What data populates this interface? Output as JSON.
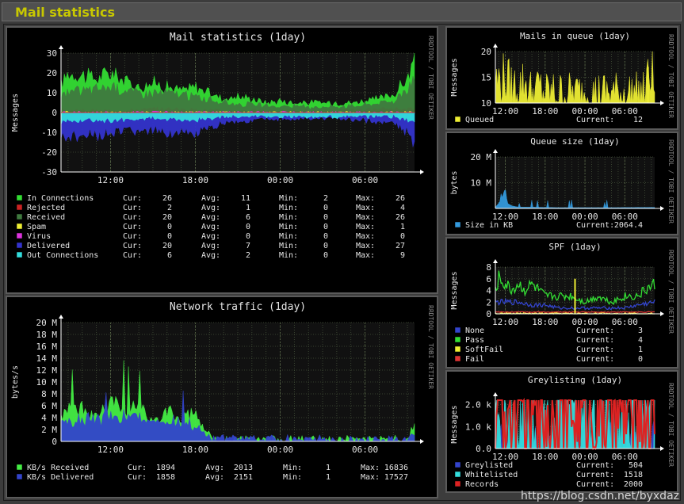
{
  "page": {
    "title": "Mail statistics"
  },
  "watermark": "https://blog.csdn.net/byxdaz",
  "colors": {
    "grid": "#44523a",
    "text": "#e6e6e6",
    "axis": "#ffffff",
    "frame": "#111111"
  },
  "chart_data": [
    {
      "id": "mail",
      "type": "area",
      "title": "Mail statistics  (1day)",
      "ylabel": "Messages",
      "side_label": "RRDTOOL / TOBI OETIKER",
      "ylim": [
        -30,
        30
      ],
      "yticks": [
        30,
        20,
        10,
        0,
        -10,
        -20,
        -30
      ],
      "xticks": [
        "12:00",
        "18:00",
        "00:00",
        "06:00"
      ],
      "x_range": [
        8.5,
        33.5
      ],
      "x_tick_hours": [
        12,
        18,
        24,
        30
      ],
      "series": [
        {
          "name": "In Connections",
          "color": "#33dd33",
          "stats": {
            "cur": 26,
            "avg": 11,
            "min": 2,
            "max": 26
          },
          "profile": [
            [
              8.5,
              14
            ],
            [
              9,
              20
            ],
            [
              10,
              19
            ],
            [
              11,
              17
            ],
            [
              12,
              20
            ],
            [
              13,
              16
            ],
            [
              14,
              13
            ],
            [
              15,
              15
            ],
            [
              16,
              13
            ],
            [
              17,
              11
            ],
            [
              18,
              13
            ],
            [
              19,
              10
            ],
            [
              20,
              7
            ],
            [
              21,
              8
            ],
            [
              22,
              7
            ],
            [
              23,
              5
            ],
            [
              24,
              6
            ],
            [
              25,
              5
            ],
            [
              26,
              5
            ],
            [
              27,
              5
            ],
            [
              28,
              5
            ],
            [
              29,
              5
            ],
            [
              30,
              6
            ],
            [
              31,
              7
            ],
            [
              32,
              9
            ],
            [
              33,
              17
            ],
            [
              33.5,
              26
            ]
          ]
        },
        {
          "name": "Rejected",
          "color": "#cc2222",
          "stats": {
            "cur": 2,
            "avg": 1,
            "min": 0,
            "max": 4
          },
          "profile": [
            [
              8.5,
              1
            ],
            [
              12,
              1
            ],
            [
              16,
              2
            ],
            [
              20,
              1
            ],
            [
              24,
              1
            ],
            [
              28,
              1
            ],
            [
              33.5,
              2
            ]
          ]
        },
        {
          "name": "Received",
          "color": "#3f7a3f",
          "stats": {
            "cur": 20,
            "avg": 6,
            "min": 0,
            "max": 26
          },
          "profile": [
            [
              8.5,
              9
            ],
            [
              10,
              11
            ],
            [
              12,
              13
            ],
            [
              14,
              10
            ],
            [
              16,
              10
            ],
            [
              18,
              8
            ],
            [
              20,
              5
            ],
            [
              22,
              4
            ],
            [
              24,
              3
            ],
            [
              26,
              3
            ],
            [
              28,
              3
            ],
            [
              30,
              4
            ],
            [
              32,
              6
            ],
            [
              33,
              12
            ],
            [
              33.5,
              20
            ]
          ]
        },
        {
          "name": "Spam",
          "color": "#eeee33",
          "stats": {
            "cur": 0,
            "avg": 0,
            "min": 0,
            "max": 1
          },
          "profile": [
            [
              8.5,
              0
            ],
            [
              33.5,
              0
            ]
          ]
        },
        {
          "name": "Virus",
          "color": "#dd33dd",
          "stats": {
            "cur": 0,
            "avg": 0,
            "min": 0,
            "max": 0
          },
          "profile": [
            [
              8.5,
              0
            ],
            [
              33.5,
              0
            ]
          ]
        },
        {
          "name": "Delivered",
          "color": "#3333cc",
          "stats": {
            "cur": 20,
            "avg": 7,
            "min": 0,
            "max": 27
          },
          "profile": [
            [
              8.5,
              -13
            ],
            [
              10,
              -12
            ],
            [
              12,
              -11
            ],
            [
              14,
              -9
            ],
            [
              16,
              -10
            ],
            [
              18,
              -11
            ],
            [
              19,
              -8
            ],
            [
              20,
              -5
            ],
            [
              22,
              -4
            ],
            [
              24,
              -3
            ],
            [
              26,
              -3
            ],
            [
              28,
              -3
            ],
            [
              30,
              -4
            ],
            [
              32,
              -5
            ],
            [
              33,
              -10
            ],
            [
              33.5,
              -16
            ]
          ]
        },
        {
          "name": "Out Connections",
          "color": "#33dddd",
          "stats": {
            "cur": 6,
            "avg": 2,
            "min": 0,
            "max": 9
          },
          "profile": [
            [
              8.5,
              -5
            ],
            [
              10,
              -4
            ],
            [
              12,
              -4
            ],
            [
              14,
              -3
            ],
            [
              16,
              -3
            ],
            [
              18,
              -4
            ],
            [
              20,
              -2
            ],
            [
              22,
              -2
            ],
            [
              24,
              -2
            ],
            [
              26,
              -2
            ],
            [
              28,
              -2
            ],
            [
              30,
              -2
            ],
            [
              32,
              -2
            ],
            [
              33.5,
              -5
            ]
          ]
        }
      ]
    },
    {
      "id": "traffic",
      "type": "area",
      "title": "Network traffic  (1day)",
      "ylabel": "bytes/s",
      "side_label": "RRDTOOL / TOBI OETIKER",
      "ylim": [
        0,
        20
      ],
      "yticks": [
        "20 M",
        "18 M",
        "16 M",
        "14 M",
        "12 M",
        "10 M",
        "8 M",
        "6 M",
        "4 M",
        "2 M",
        "0"
      ],
      "ytick_values": [
        20,
        18,
        16,
        14,
        12,
        10,
        8,
        6,
        4,
        2,
        0
      ],
      "xticks": [
        "12:00",
        "18:00",
        "00:00",
        "06:00"
      ],
      "x_range": [
        8.5,
        33.5
      ],
      "x_tick_hours": [
        12,
        18,
        24,
        30
      ],
      "series": [
        {
          "name": "KB/s Received",
          "color": "#44ee44",
          "stats": {
            "cur": 1894,
            "avg": 2013,
            "min": 1,
            "max": 16836
          },
          "profile": [
            [
              8.5,
              5
            ],
            [
              10,
              6
            ],
            [
              11,
              4
            ],
            [
              12,
              7
            ],
            [
              13,
              5
            ],
            [
              14,
              6
            ],
            [
              15,
              3
            ],
            [
              16,
              5
            ],
            [
              17,
              4
            ],
            [
              18,
              5
            ],
            [
              19,
              1
            ],
            [
              19.5,
              0.3
            ],
            [
              33,
              0.3
            ],
            [
              33.5,
              3
            ]
          ]
        },
        {
          "name": "KB/s Delivered",
          "color": "#3344cc",
          "stats": {
            "cur": 1858,
            "avg": 2151,
            "min": 1,
            "max": 17527
          },
          "profile": [
            [
              8.5,
              3
            ],
            [
              10,
              4
            ],
            [
              12,
              4
            ],
            [
              14,
              4
            ],
            [
              16,
              3
            ],
            [
              18,
              3
            ],
            [
              19,
              0.5
            ],
            [
              33,
              0.2
            ],
            [
              33.5,
              2
            ]
          ]
        }
      ]
    },
    {
      "id": "queue",
      "type": "area",
      "title": "Mails in queue  (1day)",
      "ylabel": "Messages",
      "side_label": "RRDTOOL / TOBI OETIKER",
      "ylim": [
        10,
        20
      ],
      "yticks": [
        20,
        15,
        10
      ],
      "xticks": [
        "12:00",
        "18:00",
        "00:00",
        "06:00"
      ],
      "x_range": [
        10.5,
        34.5
      ],
      "x_tick_hours": [
        12,
        18,
        24,
        30
      ],
      "series": [
        {
          "name": "Queued",
          "color": "#eeee33",
          "current": "12",
          "profile": [
            [
              10.5,
              14
            ],
            [
              12,
              15
            ],
            [
              13,
              13
            ],
            [
              15,
              14
            ],
            [
              16,
              12
            ],
            [
              17,
              13
            ],
            [
              18,
              12
            ],
            [
              20,
              12
            ],
            [
              22,
              12
            ],
            [
              24,
              12
            ],
            [
              26,
              12
            ],
            [
              28,
              12
            ],
            [
              30,
              12
            ],
            [
              32,
              12
            ],
            [
              33,
              12
            ],
            [
              34,
              17
            ],
            [
              34.5,
              12
            ]
          ]
        }
      ]
    },
    {
      "id": "qsize",
      "type": "area",
      "title": "Queue size  (1day)",
      "ylabel": "bytes",
      "side_label": "RRDTOOL / TOBI OETIKER",
      "ylim": [
        0,
        20
      ],
      "yticks": [
        "20 M",
        "10 M"
      ],
      "ytick_values": [
        20,
        10
      ],
      "xticks": [
        "12:00",
        "18:00",
        "00:00",
        "06:00"
      ],
      "x_range": [
        10.5,
        34.5
      ],
      "x_tick_hours": [
        12,
        18,
        24,
        30
      ],
      "series": [
        {
          "name": "Size in KB",
          "color": "#3399dd",
          "current": "2064.4",
          "profile": [
            [
              10.5,
              0.5
            ],
            [
              11,
              2
            ],
            [
              11.5,
              4
            ],
            [
              12,
              8
            ],
            [
              12.3,
              2
            ],
            [
              13,
              1
            ],
            [
              14,
              0.5
            ],
            [
              16,
              0.5
            ],
            [
              20,
              0.3
            ],
            [
              24,
              0.3
            ],
            [
              28,
              0.3
            ],
            [
              34.5,
              0.4
            ]
          ]
        }
      ]
    },
    {
      "id": "spf",
      "type": "line",
      "title": "SPF  (1day)",
      "ylabel": "Messages",
      "side_label": "RRDTOOL / TOBI OETIKER",
      "ylim": [
        0,
        8
      ],
      "yticks": [
        8,
        6,
        4,
        2,
        0
      ],
      "xticks": [
        "12:00",
        "18:00",
        "00:00",
        "06:00"
      ],
      "x_range": [
        10.5,
        34.5
      ],
      "x_tick_hours": [
        12,
        18,
        24,
        30
      ],
      "series": [
        {
          "name": "None",
          "color": "#3344cc",
          "current": "3",
          "profile": [
            [
              10.5,
              2
            ],
            [
              12,
              2
            ],
            [
              14,
              2
            ],
            [
              16,
              1.5
            ],
            [
              18,
              1.5
            ],
            [
              20,
              1
            ],
            [
              22,
              1
            ],
            [
              24,
              1
            ],
            [
              26,
              1
            ],
            [
              28,
              1
            ],
            [
              30,
              1
            ],
            [
              32,
              1.5
            ],
            [
              34.5,
              2
            ]
          ]
        },
        {
          "name": "Pass",
          "color": "#33dd33",
          "current": "4",
          "profile": [
            [
              10.5,
              4
            ],
            [
              11,
              6
            ],
            [
              12,
              5
            ],
            [
              13,
              4
            ],
            [
              14,
              5
            ],
            [
              15,
              4
            ],
            [
              16,
              5
            ],
            [
              17,
              4
            ],
            [
              18,
              3
            ],
            [
              20,
              3
            ],
            [
              22,
              3
            ],
            [
              24,
              2
            ],
            [
              26,
              3
            ],
            [
              28,
              2
            ],
            [
              30,
              3
            ],
            [
              32,
              3
            ],
            [
              33,
              4
            ],
            [
              34.5,
              5
            ]
          ]
        },
        {
          "name": "SoftFail",
          "color": "#eeee33",
          "current": "1",
          "profile": [
            [
              10.5,
              0
            ],
            [
              34.5,
              0
            ]
          ]
        },
        {
          "name": "Fail",
          "color": "#dd3333",
          "current": "0",
          "profile": [
            [
              10.5,
              0.3
            ],
            [
              34.5,
              0.3
            ]
          ]
        }
      ]
    },
    {
      "id": "grey",
      "type": "area",
      "title": "Greylisting  (1day)",
      "ylabel": "Messages",
      "side_label": "RRDTOOL / TOBI OETIKER",
      "ylim": [
        0,
        2200
      ],
      "yticks": [
        "2.0 k",
        "1.0 k",
        "0.0"
      ],
      "ytick_values": [
        2000,
        1000,
        0
      ],
      "xticks": [
        "12:00",
        "18:00",
        "00:00",
        "06:00"
      ],
      "x_range": [
        10.5,
        34.5
      ],
      "x_tick_hours": [
        12,
        18,
        24,
        30
      ],
      "series": [
        {
          "name": "Greylisted",
          "color": "#3344cc",
          "current": "504",
          "profile": [
            [
              10.5,
              420
            ],
            [
              20,
              440
            ],
            [
              30,
              470
            ],
            [
              34.5,
              504
            ]
          ]
        },
        {
          "name": "Whitelisted",
          "color": "#33dddd",
          "current": "1518",
          "profile": [
            [
              10.5,
              1510
            ],
            [
              34.5,
              1518
            ]
          ]
        },
        {
          "name": "Records",
          "color": "#dd2222",
          "current": "2000",
          "profile": [
            [
              10.5,
              1960
            ],
            [
              34.5,
              2000
            ]
          ]
        }
      ]
    }
  ],
  "legend_labels": {
    "cur": "Cur:",
    "avg": "Avg:",
    "min": "Min:",
    "max": "Max:",
    "current": "Current:"
  }
}
